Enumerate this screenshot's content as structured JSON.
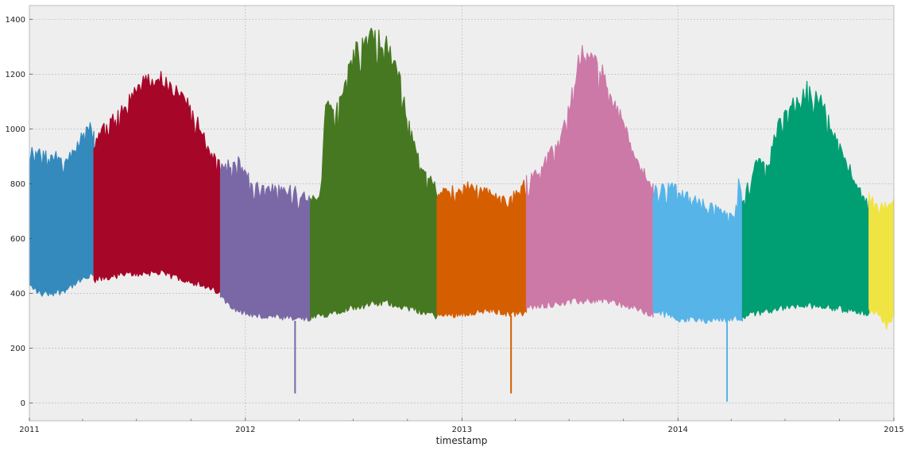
{
  "chart_data": {
    "type": "area",
    "xlabel": "timestamp",
    "ylabel": "",
    "title": "",
    "x_range": [
      "2011-01-01",
      "2015-01-01"
    ],
    "xlim": [
      "2011-01-01",
      "2015-01-01"
    ],
    "ylim": [
      -65,
      1450
    ],
    "grid": true,
    "legend": "none",
    "x_ticks": [
      {
        "date": "2011-01-01",
        "label": "2011"
      },
      {
        "date": "2012-01-01",
        "label": "2012"
      },
      {
        "date": "2013-01-01",
        "label": "2013"
      },
      {
        "date": "2014-01-01",
        "label": "2014"
      },
      {
        "date": "2015-01-01",
        "label": "2015"
      }
    ],
    "x_minor_ticks": [
      "2011-04-01",
      "2011-07-01",
      "2011-10-01",
      "2012-04-01",
      "2012-07-01",
      "2012-10-01",
      "2013-04-01",
      "2013-07-01",
      "2013-10-01",
      "2014-04-01",
      "2014-07-01",
      "2014-10-01"
    ],
    "y_ticks": [
      0,
      200,
      400,
      600,
      800,
      1000,
      1200,
      1400
    ],
    "series": [
      {
        "start": "2011-01-01",
        "end": "2011-04-20",
        "color": "#348ABD",
        "upper": [
          [
            0.0,
            940
          ],
          [
            0.15,
            940
          ],
          [
            0.35,
            920
          ],
          [
            0.55,
            915
          ],
          [
            0.7,
            930
          ],
          [
            0.85,
            1010
          ],
          [
            1.0,
            1040
          ]
        ],
        "lower": [
          [
            0.0,
            420
          ],
          [
            0.2,
            390
          ],
          [
            0.5,
            400
          ],
          [
            0.8,
            440
          ],
          [
            1.0,
            460
          ]
        ],
        "spikes": []
      },
      {
        "start": "2011-04-20",
        "end": "2011-11-20",
        "color": "#A60628",
        "upper": [
          [
            0.0,
            960
          ],
          [
            0.1,
            1050
          ],
          [
            0.22,
            1100
          ],
          [
            0.35,
            1190
          ],
          [
            0.5,
            1220
          ],
          [
            0.62,
            1180
          ],
          [
            0.72,
            1130
          ],
          [
            0.82,
            1050
          ],
          [
            0.9,
            950
          ],
          [
            1.0,
            880
          ]
        ],
        "lower": [
          [
            0.0,
            440
          ],
          [
            0.2,
            460
          ],
          [
            0.5,
            470
          ],
          [
            0.75,
            440
          ],
          [
            0.9,
            410
          ],
          [
            1.0,
            400
          ]
        ],
        "spikes": []
      },
      {
        "start": "2011-11-20",
        "end": "2012-04-20",
        "color": "#7A68A6",
        "upper": [
          [
            0.0,
            880
          ],
          [
            0.2,
            900
          ],
          [
            0.35,
            820
          ],
          [
            0.55,
            800
          ],
          [
            0.8,
            800
          ],
          [
            0.9,
            780
          ],
          [
            1.0,
            760
          ]
        ],
        "lower": [
          [
            0.0,
            380
          ],
          [
            0.2,
            330
          ],
          [
            0.4,
            310
          ],
          [
            0.6,
            305
          ],
          [
            0.8,
            300
          ],
          [
            1.0,
            300
          ]
        ],
        "spikes": [
          {
            "date": "2012-03-25",
            "value": 35
          }
        ]
      },
      {
        "start": "2012-04-20",
        "end": "2012-11-20",
        "color": "#467821",
        "upper": [
          [
            0.0,
            760
          ],
          [
            0.08,
            780
          ],
          [
            0.12,
            1120
          ],
          [
            0.22,
            1100
          ],
          [
            0.32,
            1300
          ],
          [
            0.5,
            1380
          ],
          [
            0.6,
            1340
          ],
          [
            0.7,
            1220
          ],
          [
            0.8,
            1000
          ],
          [
            0.9,
            860
          ],
          [
            1.0,
            800
          ]
        ],
        "lower": [
          [
            0.0,
            300
          ],
          [
            0.3,
            340
          ],
          [
            0.6,
            360
          ],
          [
            0.85,
            330
          ],
          [
            1.0,
            310
          ]
        ],
        "spikes": []
      },
      {
        "start": "2012-11-20",
        "end": "2013-04-20",
        "color": "#D55E00",
        "upper": [
          [
            0.0,
            780
          ],
          [
            0.2,
            800
          ],
          [
            0.4,
            810
          ],
          [
            0.6,
            780
          ],
          [
            0.8,
            750
          ],
          [
            1.0,
            830
          ]
        ],
        "lower": [
          [
            0.0,
            310
          ],
          [
            0.3,
            320
          ],
          [
            0.6,
            330
          ],
          [
            0.8,
            320
          ],
          [
            1.0,
            320
          ]
        ],
        "spikes": [
          {
            "date": "2013-03-25",
            "value": 35
          }
        ]
      },
      {
        "start": "2013-04-20",
        "end": "2013-11-20",
        "color": "#CC79A7",
        "upper": [
          [
            0.0,
            830
          ],
          [
            0.15,
            900
          ],
          [
            0.28,
            1000
          ],
          [
            0.37,
            1180
          ],
          [
            0.42,
            1320
          ],
          [
            0.5,
            1290
          ],
          [
            0.6,
            1250
          ],
          [
            0.7,
            1120
          ],
          [
            0.8,
            1000
          ],
          [
            0.9,
            880
          ],
          [
            1.0,
            800
          ]
        ],
        "lower": [
          [
            0.0,
            340
          ],
          [
            0.3,
            360
          ],
          [
            0.6,
            370
          ],
          [
            0.85,
            340
          ],
          [
            1.0,
            310
          ]
        ],
        "spikes": []
      },
      {
        "start": "2013-11-20",
        "end": "2014-04-20",
        "color": "#56B4E9",
        "upper": [
          [
            0.0,
            800
          ],
          [
            0.2,
            810
          ],
          [
            0.4,
            780
          ],
          [
            0.6,
            740
          ],
          [
            0.8,
            710
          ],
          [
            0.92,
            700
          ],
          [
            0.96,
            850
          ],
          [
            1.0,
            730
          ]
        ],
        "lower": [
          [
            0.0,
            330
          ],
          [
            0.3,
            300
          ],
          [
            0.6,
            295
          ],
          [
            0.8,
            300
          ],
          [
            1.0,
            300
          ]
        ],
        "spikes": [
          {
            "date": "2014-03-25",
            "value": 5
          }
        ]
      },
      {
        "start": "2014-04-20",
        "end": "2014-11-20",
        "color": "#009E73",
        "upper": [
          [
            0.0,
            760
          ],
          [
            0.1,
            900
          ],
          [
            0.2,
            880
          ],
          [
            0.3,
            1080
          ],
          [
            0.4,
            1120
          ],
          [
            0.52,
            1180
          ],
          [
            0.62,
            1150
          ],
          [
            0.72,
            1000
          ],
          [
            0.82,
            900
          ],
          [
            0.9,
            820
          ],
          [
            1.0,
            750
          ]
        ],
        "lower": [
          [
            0.0,
            310
          ],
          [
            0.3,
            340
          ],
          [
            0.6,
            350
          ],
          [
            0.85,
            330
          ],
          [
            1.0,
            320
          ]
        ],
        "spikes": []
      },
      {
        "start": "2014-11-20",
        "end": "2015-01-01",
        "color": "#F0E442",
        "upper": [
          [
            0.0,
            770
          ],
          [
            0.3,
            740
          ],
          [
            0.6,
            730
          ],
          [
            1.0,
            760
          ]
        ],
        "lower": [
          [
            0.0,
            330
          ],
          [
            0.4,
            320
          ],
          [
            0.7,
            270
          ],
          [
            1.0,
            310
          ]
        ],
        "spikes": []
      }
    ]
  }
}
